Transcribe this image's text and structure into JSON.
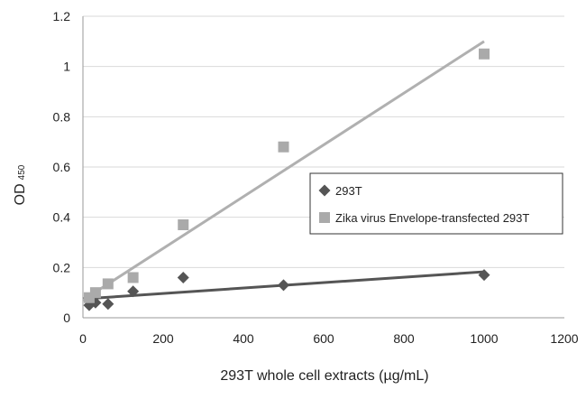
{
  "chart_data": {
    "type": "scatter",
    "xlabel": "293T whole cell extracts (µg/mL)",
    "ylabel": "OD",
    "ylabel_sub": "450",
    "xlim": [
      0,
      1200
    ],
    "ylim": [
      0,
      1.2
    ],
    "xticks": [
      0,
      200,
      400,
      600,
      800,
      1000,
      1200
    ],
    "yticks": [
      0,
      0.2,
      0.4,
      0.6,
      0.8,
      1,
      1.2
    ],
    "ytick_labels": [
      "0",
      "0.2",
      "0.4",
      "0.6",
      "0.8",
      "1",
      "1.2"
    ],
    "grid": "horizontal",
    "legend_position": "right",
    "series": [
      {
        "name": "293T",
        "marker": "diamond",
        "color": "#555555",
        "x": [
          15.6,
          31.25,
          62.5,
          125,
          250,
          500,
          1000
        ],
        "y": [
          0.05,
          0.06,
          0.055,
          0.105,
          0.16,
          0.13,
          0.17
        ],
        "trendline": [
          [
            0,
            0.075
          ],
          [
            1000,
            0.183
          ]
        ],
        "trend_color": "#555555"
      },
      {
        "name": "Zika virus Envelope-transfected 293T",
        "marker": "square",
        "color": "#aaaaaa",
        "x": [
          15.6,
          31.25,
          62.5,
          125,
          250,
          500,
          1000
        ],
        "y": [
          0.08,
          0.1,
          0.135,
          0.16,
          0.37,
          0.68,
          1.05
        ],
        "trendline": [
          [
            0,
            0.07
          ],
          [
            1000,
            1.1
          ]
        ],
        "trend_color": "#b0b0b0"
      }
    ]
  }
}
